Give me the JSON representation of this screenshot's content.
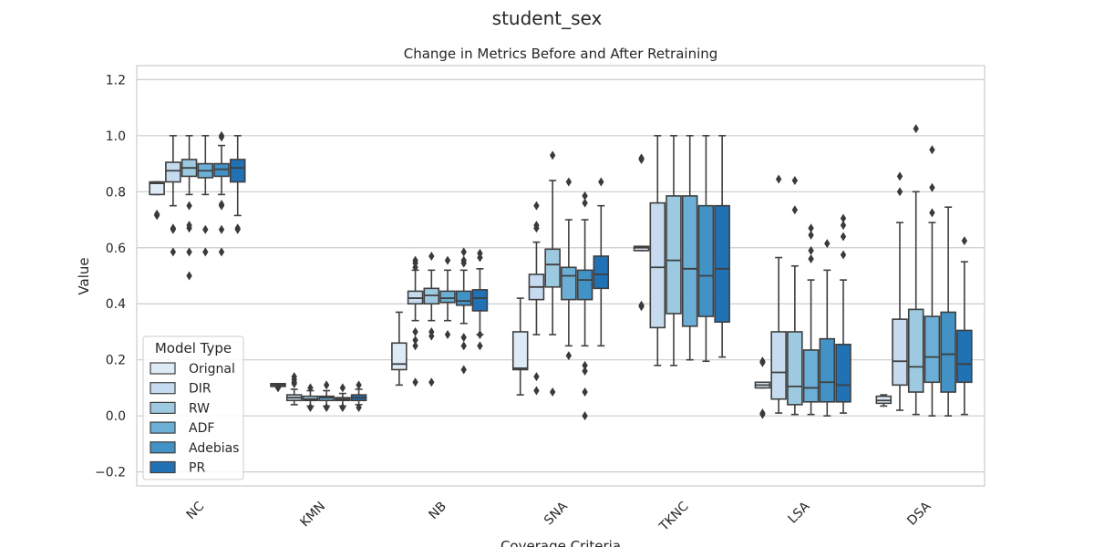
{
  "suptitle": "student_sex",
  "chart_data": {
    "type": "box",
    "title": "Change in Metrics Before and After Retraining",
    "xlabel": "Coverage Criteria",
    "ylabel": "Value",
    "ylim": [
      -0.25,
      1.25
    ],
    "yticks": [
      -0.2,
      0.0,
      0.2,
      0.4,
      0.6,
      0.8,
      1.0,
      1.2
    ],
    "ytick_labels": [
      "−0.2",
      "0.0",
      "0.2",
      "0.4",
      "0.6",
      "0.8",
      "1.0",
      "1.2"
    ],
    "grid": true,
    "legend_position": "lower-left",
    "legend_title": "Model Type",
    "categories": [
      "NC",
      "KMN",
      "NB",
      "SNA",
      "TKNC",
      "LSA",
      "DSA"
    ],
    "series": [
      {
        "name": "Orignal",
        "color": "#deebf7",
        "boxes": [
          {
            "whislo": 0.79,
            "q1": 0.79,
            "med": 0.83,
            "q3": 0.835,
            "whishi": 0.835,
            "fliers": [
              0.715,
              0.72
            ]
          },
          {
            "whislo": 0.105,
            "q1": 0.105,
            "med": 0.11,
            "q3": 0.115,
            "whishi": 0.115,
            "fliers": [
              0.1
            ]
          },
          {
            "whislo": 0.11,
            "q1": 0.165,
            "med": 0.185,
            "q3": 0.26,
            "whishi": 0.37,
            "fliers": []
          },
          {
            "whislo": 0.075,
            "q1": 0.165,
            "med": 0.17,
            "q3": 0.3,
            "whishi": 0.42,
            "fliers": []
          },
          {
            "whislo": 0.59,
            "q1": 0.59,
            "med": 0.6,
            "q3": 0.605,
            "whishi": 0.605,
            "fliers": [
              0.915,
              0.92,
              0.39,
              0.395
            ]
          },
          {
            "whislo": 0.1,
            "q1": 0.1,
            "med": 0.11,
            "q3": 0.12,
            "whishi": 0.12,
            "fliers": [
              0.19,
              0.195,
              0.005,
              0.01
            ]
          },
          {
            "whislo": 0.035,
            "q1": 0.045,
            "med": 0.055,
            "q3": 0.07,
            "whishi": 0.075,
            "fliers": []
          }
        ]
      },
      {
        "name": "DIR",
        "color": "#c6dbef",
        "boxes": [
          {
            "whislo": 0.75,
            "q1": 0.835,
            "med": 0.875,
            "q3": 0.905,
            "whishi": 1.0,
            "fliers": [
              0.665,
              0.67,
              0.585
            ]
          },
          {
            "whislo": 0.04,
            "q1": 0.055,
            "med": 0.065,
            "q3": 0.075,
            "whishi": 0.095,
            "fliers": [
              0.115,
              0.12,
              0.13,
              0.14
            ]
          },
          {
            "whislo": 0.34,
            "q1": 0.4,
            "med": 0.42,
            "q3": 0.445,
            "whishi": 0.52,
            "fliers": [
              0.53,
              0.545,
              0.555,
              0.3,
              0.27,
              0.25,
              0.12
            ]
          },
          {
            "whislo": 0.29,
            "q1": 0.415,
            "med": 0.46,
            "q3": 0.505,
            "whishi": 0.62,
            "fliers": [
              0.67,
              0.68,
              0.75,
              0.14,
              0.09
            ]
          },
          {
            "whislo": 0.18,
            "q1": 0.315,
            "med": 0.53,
            "q3": 0.76,
            "whishi": 1.0,
            "fliers": []
          },
          {
            "whislo": 0.01,
            "q1": 0.06,
            "med": 0.155,
            "q3": 0.3,
            "whishi": 0.565,
            "fliers": [
              0.845
            ]
          },
          {
            "whislo": 0.02,
            "q1": 0.11,
            "med": 0.195,
            "q3": 0.345,
            "whishi": 0.69,
            "fliers": [
              0.8,
              0.855
            ]
          }
        ]
      },
      {
        "name": "RW",
        "color": "#9ecae1",
        "boxes": [
          {
            "whislo": 0.79,
            "q1": 0.855,
            "med": 0.885,
            "q3": 0.915,
            "whishi": 1.0,
            "fliers": [
              0.75,
              0.67,
              0.68,
              0.585,
              0.5
            ]
          },
          {
            "whislo": 0.035,
            "q1": 0.055,
            "med": 0.06,
            "q3": 0.07,
            "whishi": 0.09,
            "fliers": [
              0.1,
              0.03
            ]
          },
          {
            "whislo": 0.34,
            "q1": 0.4,
            "med": 0.43,
            "q3": 0.455,
            "whishi": 0.52,
            "fliers": [
              0.57,
              0.3,
              0.285,
              0.12
            ]
          },
          {
            "whislo": 0.29,
            "q1": 0.46,
            "med": 0.54,
            "q3": 0.595,
            "whishi": 0.84,
            "fliers": [
              0.93,
              0.085
            ]
          },
          {
            "whislo": 0.18,
            "q1": 0.365,
            "med": 0.555,
            "q3": 0.785,
            "whishi": 1.0,
            "fliers": []
          },
          {
            "whislo": 0.005,
            "q1": 0.04,
            "med": 0.105,
            "q3": 0.3,
            "whishi": 0.535,
            "fliers": [
              0.84,
              0.735
            ]
          },
          {
            "whislo": 0.005,
            "q1": 0.085,
            "med": 0.175,
            "q3": 0.38,
            "whishi": 0.8,
            "fliers": [
              1.025
            ]
          }
        ]
      },
      {
        "name": "ADF",
        "color": "#6baed6",
        "boxes": [
          {
            "whislo": 0.79,
            "q1": 0.85,
            "med": 0.875,
            "q3": 0.9,
            "whishi": 1.0,
            "fliers": [
              0.665,
              0.585
            ]
          },
          {
            "whislo": 0.035,
            "q1": 0.055,
            "med": 0.065,
            "q3": 0.07,
            "whishi": 0.09,
            "fliers": [
              0.11,
              0.03
            ]
          },
          {
            "whislo": 0.34,
            "q1": 0.405,
            "med": 0.42,
            "q3": 0.445,
            "whishi": 0.52,
            "fliers": [
              0.555,
              0.29
            ]
          },
          {
            "whislo": 0.25,
            "q1": 0.415,
            "med": 0.5,
            "q3": 0.53,
            "whishi": 0.7,
            "fliers": [
              0.835,
              0.215
            ]
          },
          {
            "whislo": 0.2,
            "q1": 0.32,
            "med": 0.525,
            "q3": 0.785,
            "whishi": 1.0,
            "fliers": []
          },
          {
            "whislo": 0.005,
            "q1": 0.05,
            "med": 0.1,
            "q3": 0.235,
            "whishi": 0.485,
            "fliers": [
              0.67,
              0.645,
              0.59,
              0.56
            ]
          },
          {
            "whislo": 0.0,
            "q1": 0.12,
            "med": 0.21,
            "q3": 0.355,
            "whishi": 0.69,
            "fliers": [
              0.95,
              0.815,
              0.725
            ]
          }
        ]
      },
      {
        "name": "Adebias",
        "color": "#4292c6",
        "boxes": [
          {
            "whislo": 0.79,
            "q1": 0.855,
            "med": 0.88,
            "q3": 0.9,
            "whishi": 0.965,
            "fliers": [
              1.0,
              0.995,
              0.755,
              0.75,
              0.665,
              0.585
            ]
          },
          {
            "whislo": 0.035,
            "q1": 0.055,
            "med": 0.06,
            "q3": 0.065,
            "whishi": 0.08,
            "fliers": [
              0.1,
              0.03
            ]
          },
          {
            "whislo": 0.33,
            "q1": 0.395,
            "med": 0.41,
            "q3": 0.445,
            "whishi": 0.52,
            "fliers": [
              0.585,
              0.555,
              0.545,
              0.28,
              0.25,
              0.165
            ]
          },
          {
            "whislo": 0.25,
            "q1": 0.415,
            "med": 0.485,
            "q3": 0.52,
            "whishi": 0.7,
            "fliers": [
              0.785,
              0.76,
              0.18,
              0.16,
              0.085,
              0.0
            ]
          },
          {
            "whislo": 0.195,
            "q1": 0.355,
            "med": 0.5,
            "q3": 0.75,
            "whishi": 1.0,
            "fliers": []
          },
          {
            "whislo": 0.0,
            "q1": 0.05,
            "med": 0.12,
            "q3": 0.275,
            "whishi": 0.52,
            "fliers": [
              0.615
            ]
          },
          {
            "whislo": 0.0,
            "q1": 0.085,
            "med": 0.22,
            "q3": 0.37,
            "whishi": 0.745,
            "fliers": []
          }
        ]
      },
      {
        "name": "PR",
        "color": "#2171b5",
        "boxes": [
          {
            "whislo": 0.715,
            "q1": 0.835,
            "med": 0.885,
            "q3": 0.915,
            "whishi": 1.0,
            "fliers": [
              0.665,
              0.67
            ]
          },
          {
            "whislo": 0.04,
            "q1": 0.055,
            "med": 0.065,
            "q3": 0.075,
            "whishi": 0.095,
            "fliers": [
              0.11,
              0.03
            ]
          },
          {
            "whislo": 0.29,
            "q1": 0.375,
            "med": 0.42,
            "q3": 0.45,
            "whishi": 0.525,
            "fliers": [
              0.58,
              0.565,
              0.29,
              0.25
            ]
          },
          {
            "whislo": 0.25,
            "q1": 0.455,
            "med": 0.505,
            "q3": 0.57,
            "whishi": 0.75,
            "fliers": [
              0.835
            ]
          },
          {
            "whislo": 0.21,
            "q1": 0.335,
            "med": 0.525,
            "q3": 0.75,
            "whishi": 1.0,
            "fliers": []
          },
          {
            "whislo": 0.01,
            "q1": 0.05,
            "med": 0.11,
            "q3": 0.255,
            "whishi": 0.485,
            "fliers": [
              0.705,
              0.68,
              0.64,
              0.575
            ]
          },
          {
            "whislo": 0.005,
            "q1": 0.12,
            "med": 0.185,
            "q3": 0.305,
            "whishi": 0.55,
            "fliers": [
              0.625
            ]
          }
        ]
      }
    ]
  }
}
